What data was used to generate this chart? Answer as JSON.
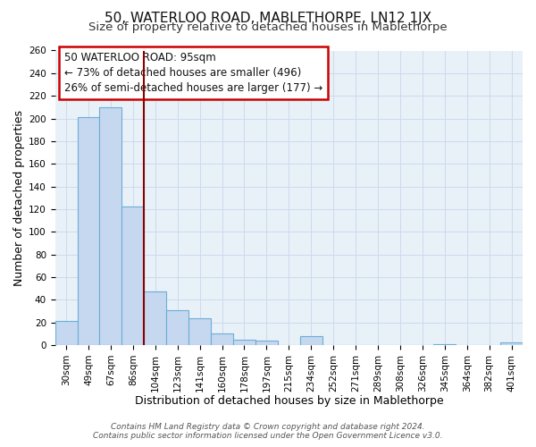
{
  "title": "50, WATERLOO ROAD, MABLETHORPE, LN12 1JX",
  "subtitle": "Size of property relative to detached houses in Mablethorpe",
  "xlabel": "Distribution of detached houses by size in Mablethorpe",
  "ylabel": "Number of detached properties",
  "bar_labels": [
    "30sqm",
    "49sqm",
    "67sqm",
    "86sqm",
    "104sqm",
    "123sqm",
    "141sqm",
    "160sqm",
    "178sqm",
    "197sqm",
    "215sqm",
    "234sqm",
    "252sqm",
    "271sqm",
    "289sqm",
    "308sqm",
    "326sqm",
    "345sqm",
    "364sqm",
    "382sqm",
    "401sqm"
  ],
  "bar_values": [
    21,
    201,
    210,
    122,
    47,
    31,
    24,
    10,
    5,
    4,
    0,
    8,
    0,
    0,
    0,
    0,
    0,
    1,
    0,
    0,
    2
  ],
  "bar_color": "#c5d8f0",
  "bar_edgecolor": "#6baed6",
  "bar_linewidth": 0.8,
  "ylim": [
    0,
    260
  ],
  "yticks": [
    0,
    20,
    40,
    60,
    80,
    100,
    120,
    140,
    160,
    180,
    200,
    220,
    240,
    260
  ],
  "vline_color": "#8b0000",
  "annotation_title": "50 WATERLOO ROAD: 95sqm",
  "annotation_line1": "← 73% of detached houses are smaller (496)",
  "annotation_line2": "26% of semi-detached houses are larger (177) →",
  "footer_line1": "Contains HM Land Registry data © Crown copyright and database right 2024.",
  "footer_line2": "Contains public sector information licensed under the Open Government Licence v3.0.",
  "background_color": "#ffffff",
  "plot_bg_color": "#e8f0f8",
  "grid_color": "#c8d8ec",
  "title_fontsize": 11,
  "subtitle_fontsize": 9.5,
  "axis_label_fontsize": 9,
  "tick_fontsize": 7.5,
  "footer_fontsize": 6.5
}
